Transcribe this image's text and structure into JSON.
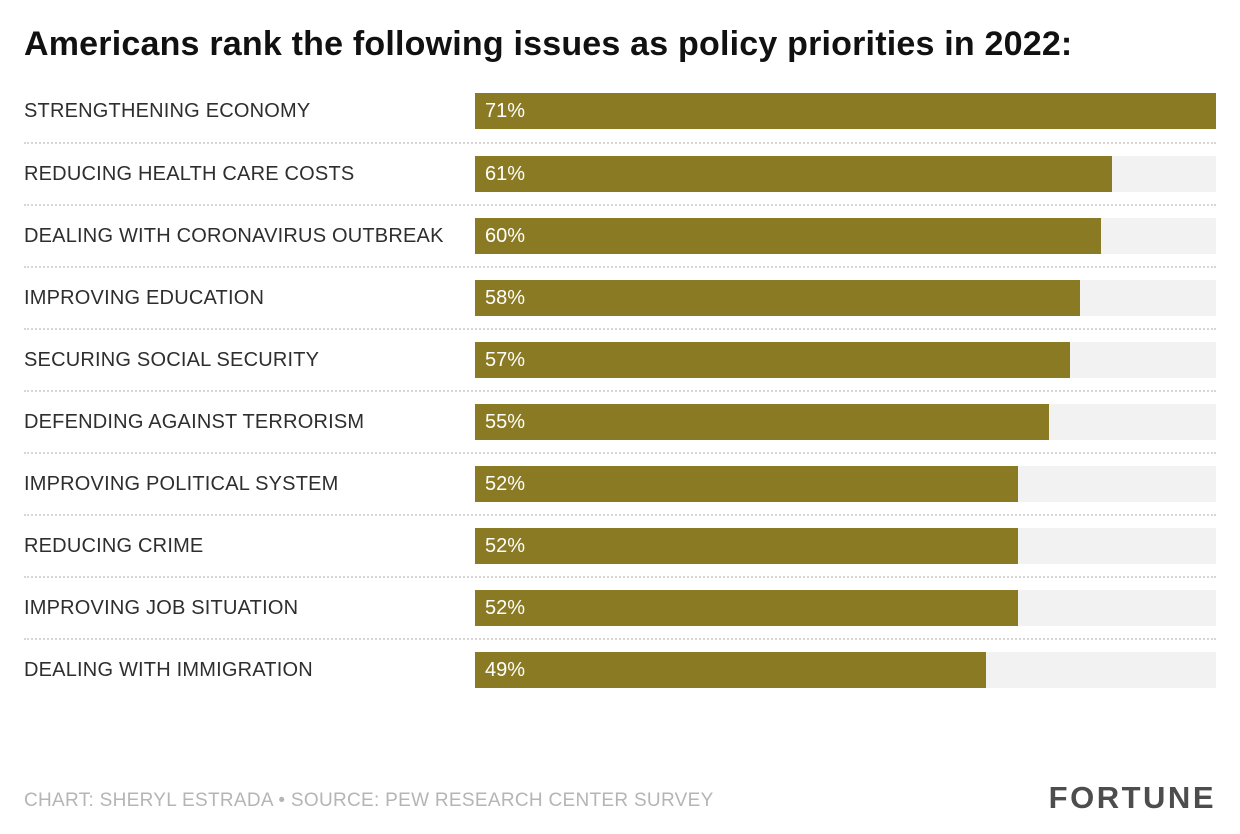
{
  "title": "Americans rank the following issues as policy priorities in 2022:",
  "footer": {
    "credit": "CHART: SHERYL ESTRADA • SOURCE: PEW RESEARCH CENTER SURVEY",
    "brand": "FORTUNE"
  },
  "colors": {
    "bar": "#8a7a23",
    "track": "#f2f2f2",
    "value_text": "#ffffff"
  },
  "chart_data": {
    "type": "bar",
    "orientation": "horizontal",
    "title": "Americans rank the following issues as policy priorities in 2022:",
    "categories": [
      "STRENGTHENING ECONOMY",
      "REDUCING HEALTH CARE COSTS",
      "DEALING WITH CORONAVIRUS OUTBREAK",
      "IMPROVING EDUCATION",
      "SECURING SOCIAL SECURITY",
      "DEFENDING AGAINST TERRORISM",
      "IMPROVING POLITICAL SYSTEM",
      "REDUCING CRIME",
      "IMPROVING JOB SITUATION",
      "DEALING WITH IMMIGRATION"
    ],
    "values": [
      71,
      61,
      60,
      58,
      57,
      55,
      52,
      52,
      52,
      49
    ],
    "value_labels": [
      "71%",
      "61%",
      "60%",
      "58%",
      "57%",
      "55%",
      "52%",
      "52%",
      "52%",
      "49%"
    ],
    "xlabel": "",
    "ylabel": "",
    "xlim": [
      0,
      71
    ],
    "grid": false,
    "legend": false,
    "data_labels_position": "inside-start"
  }
}
